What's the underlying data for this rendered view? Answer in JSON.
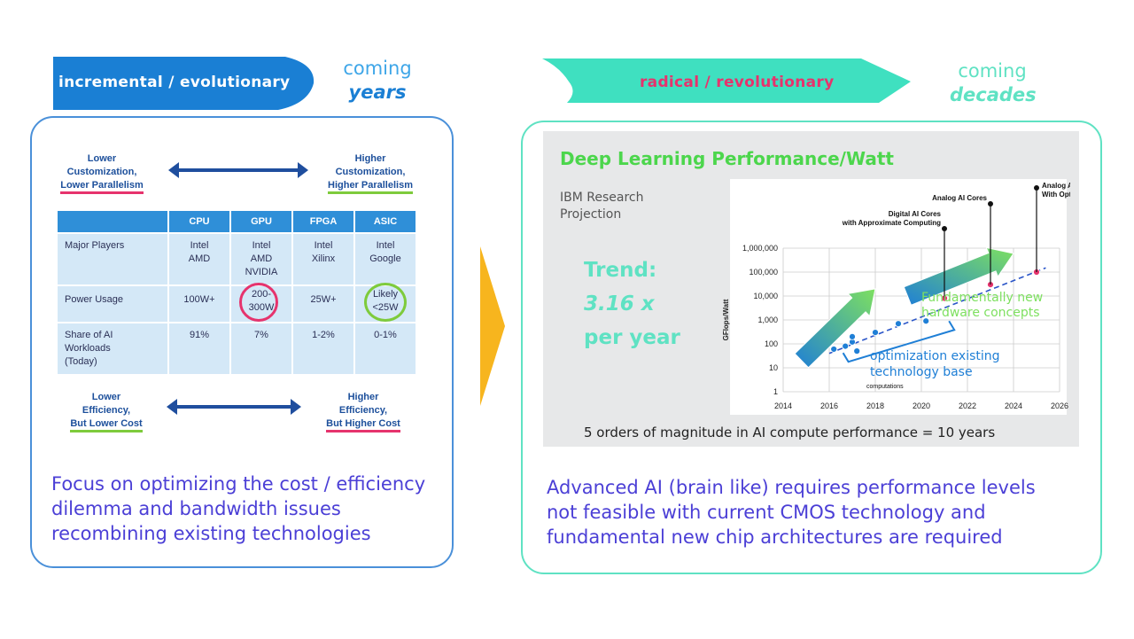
{
  "left_banner": {
    "label": "incremental / evolutionary",
    "coming": "coming",
    "period": "years",
    "color": "#1a7fd4"
  },
  "right_banner": {
    "label": "radical / revolutionary",
    "coming": "coming",
    "period": "decades",
    "color": "#3fe0c0"
  },
  "left_panel": {
    "top_left_label": [
      "Lower",
      "Customization,",
      "Lower Parallelism"
    ],
    "top_right_label": [
      "Higher",
      "Customization,",
      "Higher Parallelism"
    ],
    "bottom_left_label": [
      "Lower",
      "Efficiency,",
      "But Lower Cost"
    ],
    "bottom_right_label": [
      "Higher",
      "Efficiency,",
      "But Higher Cost"
    ],
    "table": {
      "headers": [
        "",
        "CPU",
        "GPU",
        "FPGA",
        "ASIC"
      ],
      "rows": [
        [
          "Major Players",
          "Intel\nAMD",
          "Intel\nAMD\nNVIDIA",
          "Intel\nXilinx",
          "Intel\nGoogle"
        ],
        [
          "Power Usage",
          "100W+",
          "200-\n300W",
          "25W+",
          "Likely\n<25W"
        ],
        [
          "Share of AI\nWorkloads\n(Today)",
          "91%",
          "7%",
          "1-2%",
          "0-1%"
        ]
      ]
    },
    "summary": [
      "Focus on optimizing the cost / efficiency",
      "dilemma and bandwidth issues",
      "recombining existing technologies"
    ]
  },
  "right_panel": {
    "title": "Deep Learning Performance/Watt",
    "source": [
      "IBM Research",
      "Projection"
    ],
    "trend": [
      "Trend:",
      "3.16 x",
      "per year"
    ],
    "footer": "5 orders of magnitude in AI compute performance = 10 years",
    "summary": [
      "Advanced AI (brain like) requires performance levels",
      "not feasible with current CMOS technology and",
      "fundamental new chip architectures are required"
    ]
  },
  "chart_data": {
    "type": "scatter",
    "ylabel": "GFlops/Watt",
    "yscale": "log",
    "ylim": [
      1,
      1000000
    ],
    "xlim": [
      2014,
      2026
    ],
    "x_ticks": [
      "2014",
      "2016",
      "2018",
      "2020",
      "2022",
      "2024",
      "2026"
    ],
    "y_ticks": [
      "1",
      "10",
      "100",
      "1,000",
      "10,000",
      "100,000",
      "1,000,000"
    ],
    "series": [
      {
        "name": "",
        "color": "#1f7fd6",
        "points": [
          [
            2016.2,
            60
          ],
          [
            2016.7,
            80
          ],
          [
            2017.0,
            120
          ],
          [
            2017.2,
            50
          ],
          [
            2017.0,
            200
          ],
          [
            2018.0,
            300
          ],
          [
            2019.0,
            700
          ],
          [
            2020.2,
            900
          ]
        ]
      },
      {
        "name": "",
        "color": "#e6336d",
        "points": [
          [
            2021.0,
            8000
          ],
          [
            2023.0,
            30000
          ],
          [
            2025.0,
            100000
          ]
        ]
      }
    ],
    "annotations": [
      {
        "label": [
          "Digital AI Cores",
          "with Approximate Computing"
        ],
        "x": 2021.0,
        "y": 8000
      },
      {
        "label": [
          "Analog AI Cores"
        ],
        "x": 2023.0,
        "y": 30000
      },
      {
        "label": [
          "Analog AI Cores",
          "With Optimized Materials"
        ],
        "x": 2025.0,
        "y": 100000
      }
    ],
    "callouts": {
      "new": [
        "Fundamentally new",
        "hardware concepts"
      ],
      "existing": [
        "optimization existing",
        "technology base"
      ],
      "existing_small": "computations"
    }
  }
}
